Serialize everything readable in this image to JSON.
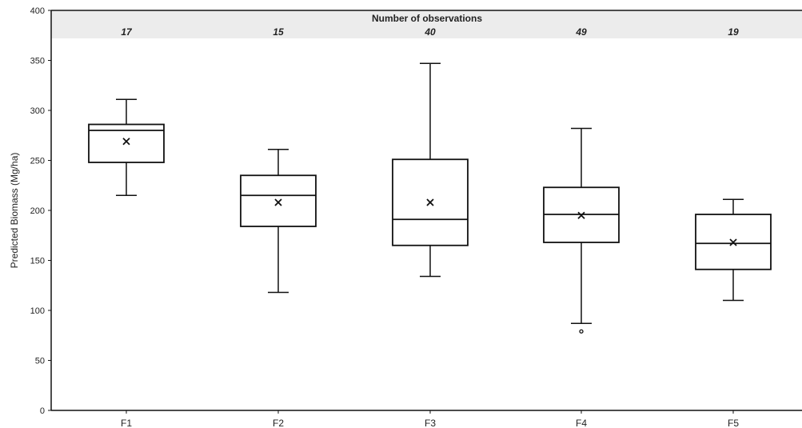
{
  "chart_data": {
    "type": "boxplot",
    "ylabel": "Predicted Biomass (Mg/ha)",
    "xlabel": "",
    "ylim": [
      0,
      400
    ],
    "yticks": [
      0,
      50,
      100,
      150,
      200,
      250,
      300,
      350,
      400
    ],
    "grid": false,
    "categories": [
      "F1",
      "F2",
      "F3",
      "F4",
      "F5"
    ],
    "observations": {
      "title": "Number of observations",
      "counts": [
        "17",
        "15",
        "40",
        "49",
        "19"
      ]
    },
    "boxes": [
      {
        "category": "F1",
        "whisker_low": 215,
        "q1": 248,
        "median": 280,
        "q3": 286,
        "whisker_high": 311,
        "mean": 269,
        "outliers": []
      },
      {
        "category": "F2",
        "whisker_low": 118,
        "q1": 184,
        "median": 215,
        "q3": 235,
        "whisker_high": 261,
        "mean": 208,
        "outliers": []
      },
      {
        "category": "F3",
        "whisker_low": 134,
        "q1": 165,
        "median": 191,
        "q3": 251,
        "whisker_high": 347,
        "mean": 208,
        "outliers": []
      },
      {
        "category": "F4",
        "whisker_low": 87,
        "q1": 168,
        "median": 196,
        "q3": 223,
        "whisker_high": 282,
        "mean": 195,
        "outliers": [
          79
        ]
      },
      {
        "category": "F5",
        "whisker_low": 110,
        "q1": 141,
        "median": 167,
        "q3": 196,
        "whisker_high": 211,
        "mean": 168,
        "outliers": []
      }
    ],
    "colors": {
      "box_stroke": "#111111",
      "box_fill": "#ffffff",
      "header_band": "#ececec",
      "axis": "#111111"
    }
  }
}
